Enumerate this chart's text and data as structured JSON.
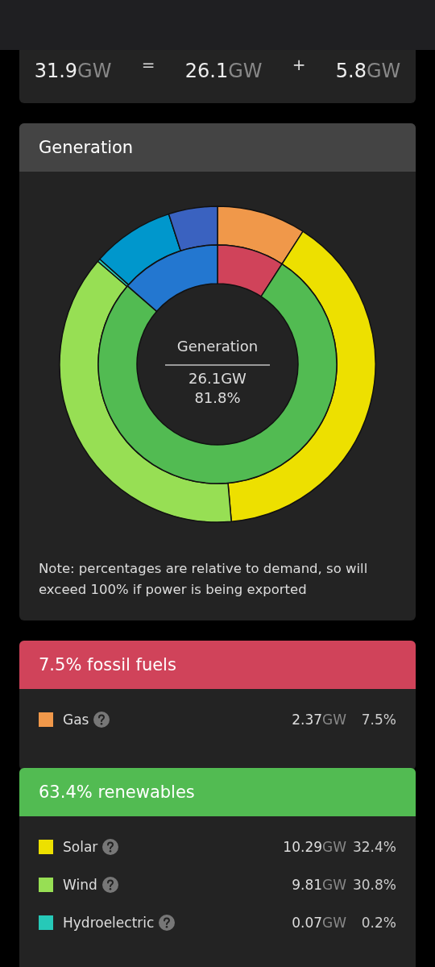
{
  "chart_data": [
    {
      "type": "other",
      "annotations": [
        "31.9GW",
        "=",
        "26.1GW",
        "+",
        "5.8GW"
      ]
    },
    {
      "type": "donut",
      "title": "Generation",
      "series": [
        {
          "values": [
            9.1,
            39.5,
            37.7,
            0.3,
            8.4,
            5.0
          ],
          "colors": [
            "#f0984a",
            "#ede000",
            "#97df54",
            "#26c9b8",
            "#0097cc",
            "#3a62c0"
          ]
        },
        {
          "values": [
            9.1,
            77.3,
            13.6
          ],
          "colors": [
            "#d0435a",
            "#52bb52",
            "#2377d0"
          ]
        }
      ],
      "annotations": [
        "Generation",
        "26.1GW",
        "81.8%",
        "Note: percentages are relative to demand, so will exceed 100% if power is being exported"
      ]
    },
    {
      "type": "other",
      "title": "7.5% fossil fuels",
      "color": "#d0435a",
      "categories": [
        "Gas"
      ],
      "colors": [
        "#f0984a"
      ],
      "value_labels": [
        "2.37GW"
      ],
      "annotations": [
        "7.5%"
      ]
    },
    {
      "type": "other",
      "title": "63.4% renewables",
      "color": "#52bb52",
      "categories": [
        "Solar",
        "Wind",
        "Hydroelectric"
      ],
      "colors": [
        "#ede000",
        "#97df54",
        "#26c9b8"
      ],
      "value_labels": [
        "10.29GW",
        "9.81GW",
        "0.07GW"
      ],
      "annotations": [
        "32.4%",
        "30.8%",
        "0.2%"
      ]
    }
  ]
}
